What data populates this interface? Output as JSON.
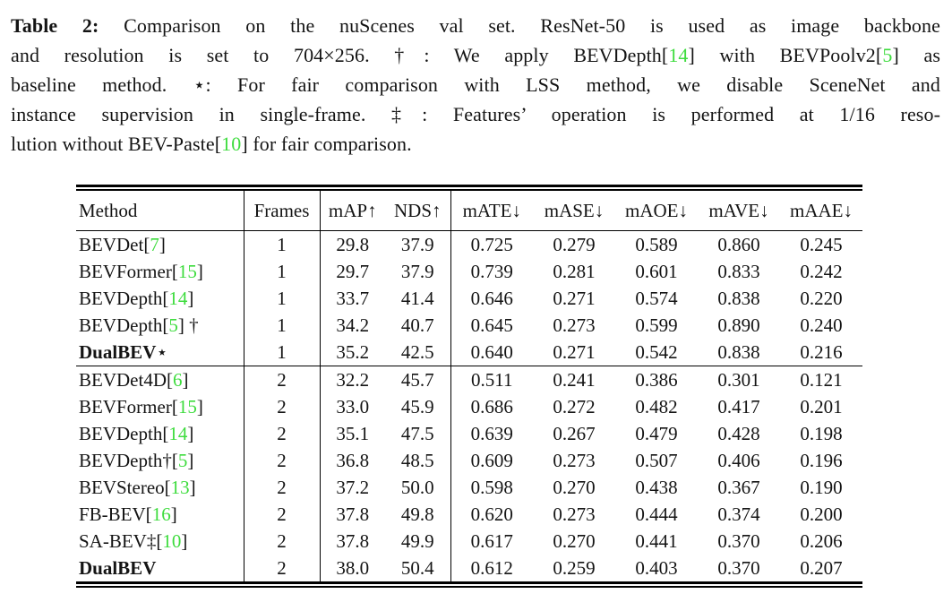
{
  "page": {
    "background": "#ffffff"
  },
  "colors": {
    "citation_green": "#3edc3e",
    "text": "#141414"
  },
  "caption": {
    "label": "Table 2:",
    "lines": [
      {
        "justify": true,
        "segments": [
          {
            "t": "Table 2:",
            "b": true
          },
          {
            "t": " Comparison on the nuScenes val set. ResNet-50 is used as image backbone"
          }
        ]
      },
      {
        "justify": true,
        "segments": [
          {
            "t": "and resolution is set to 704×256. †: We apply BEVDepth["
          },
          {
            "t": "14",
            "c": "green"
          },
          {
            "t": "] with BEVPoolv2["
          },
          {
            "t": "5",
            "c": "green"
          },
          {
            "t": "] as"
          }
        ]
      },
      {
        "justify": true,
        "segments": [
          {
            "t": "baseline method. ⋆: For fair comparison with LSS method, we disable SceneNet and"
          }
        ]
      },
      {
        "justify": true,
        "segments": [
          {
            "t": "instance supervision in single-frame. ‡: Features’ operation is performed at 1/16 reso-"
          }
        ]
      },
      {
        "justify": false,
        "segments": [
          {
            "t": "lution without BEV-Paste["
          },
          {
            "t": "10",
            "c": "green"
          },
          {
            "t": "] for fair comparison."
          }
        ]
      }
    ]
  },
  "table": {
    "columns": [
      {
        "key": "method",
        "label": "Method",
        "align": "left",
        "sep": true,
        "width": 187
      },
      {
        "key": "frames",
        "label": "Frames",
        "sep": true,
        "width": 85
      },
      {
        "key": "map",
        "label": "mAP↑",
        "width": 73
      },
      {
        "key": "nds",
        "label": "NDS↑",
        "sep": true,
        "width": 73
      },
      {
        "key": "mate",
        "label": "mATE↓",
        "width": 92
      },
      {
        "key": "mase",
        "label": "mASE↓",
        "width": 92
      },
      {
        "key": "maoe",
        "label": "mAOE↓",
        "width": 92
      },
      {
        "key": "mave",
        "label": "mAVE↓",
        "width": 92
      },
      {
        "key": "maae",
        "label": "mAAE↓",
        "width": 92
      }
    ],
    "groups": [
      {
        "rows": [
          {
            "method": [
              {
                "t": "BEVDet["
              },
              {
                "t": "7",
                "c": "green"
              },
              {
                "t": "]"
              }
            ],
            "frames": "1",
            "map": "29.8",
            "nds": "37.9",
            "mate": "0.725",
            "mase": "0.279",
            "maoe": "0.589",
            "mave": "0.860",
            "maae": "0.245"
          },
          {
            "method": [
              {
                "t": "BEVFormer["
              },
              {
                "t": "15",
                "c": "green"
              },
              {
                "t": "]"
              }
            ],
            "frames": "1",
            "map": "29.7",
            "nds": "37.9",
            "mate": "0.739",
            "mase": "0.281",
            "maoe": "0.601",
            "mave": "0.833",
            "maae": "0.242"
          },
          {
            "method": [
              {
                "t": "BEVDepth["
              },
              {
                "t": "14",
                "c": "green"
              },
              {
                "t": "]"
              }
            ],
            "frames": "1",
            "map": "33.7",
            "nds": "41.4",
            "mate": "0.646",
            "mase": "0.271",
            "maoe": "0.574",
            "mave": "0.838",
            "maae": "0.220"
          },
          {
            "method": [
              {
                "t": "BEVDepth["
              },
              {
                "t": "5",
                "c": "green"
              },
              {
                "t": "] †"
              }
            ],
            "frames": "1",
            "map": "34.2",
            "nds": "40.7",
            "mate": "0.645",
            "mase": "0.273",
            "maoe": "0.599",
            "mave": "0.890",
            "maae": "0.240"
          },
          {
            "method": [
              {
                "t": "DualBEV",
                "b": true
              },
              {
                "t": "⋆"
              }
            ],
            "bold": true,
            "frames": "1",
            "map": "35.2",
            "nds": "42.5",
            "mate": "0.640",
            "mase": "0.271",
            "maoe": "0.542",
            "mave": "0.838",
            "maae": "0.216"
          }
        ]
      },
      {
        "rows": [
          {
            "method": [
              {
                "t": "BEVDet4D["
              },
              {
                "t": "6",
                "c": "green"
              },
              {
                "t": "]"
              }
            ],
            "frames": "2",
            "map": "32.2",
            "nds": "45.7",
            "mate": "0.511",
            "mase": "0.241",
            "maoe": "0.386",
            "mave": "0.301",
            "maae": "0.121"
          },
          {
            "method": [
              {
                "t": "BEVFormer["
              },
              {
                "t": "15",
                "c": "green"
              },
              {
                "t": "]"
              }
            ],
            "frames": "2",
            "map": "33.0",
            "nds": "45.9",
            "mate": "0.686",
            "mase": "0.272",
            "maoe": "0.482",
            "mave": "0.417",
            "maae": "0.201"
          },
          {
            "method": [
              {
                "t": "BEVDepth["
              },
              {
                "t": "14",
                "c": "green"
              },
              {
                "t": "]"
              }
            ],
            "frames": "2",
            "map": "35.1",
            "nds": "47.5",
            "mate": "0.639",
            "mase": "0.267",
            "maoe": "0.479",
            "mave": "0.428",
            "maae": "0.198"
          },
          {
            "method": [
              {
                "t": "BEVDepth†["
              },
              {
                "t": "5",
                "c": "green"
              },
              {
                "t": "]"
              }
            ],
            "frames": "2",
            "map": "36.8",
            "nds": "48.5",
            "mate": "0.609",
            "mase": "0.273",
            "maoe": "0.507",
            "mave": "0.406",
            "maae": "0.196"
          },
          {
            "method": [
              {
                "t": "BEVStereo["
              },
              {
                "t": "13",
                "c": "green"
              },
              {
                "t": "]"
              }
            ],
            "frames": "2",
            "map": "37.2",
            "nds": "50.0",
            "mate": "0.598",
            "mase": "0.270",
            "maoe": "0.438",
            "mave": "0.367",
            "maae": "0.190"
          },
          {
            "method": [
              {
                "t": "FB-BEV["
              },
              {
                "t": "16",
                "c": "green"
              },
              {
                "t": "]"
              }
            ],
            "frames": "2",
            "map": "37.8",
            "nds": "49.8",
            "mate": "0.620",
            "mase": "0.273",
            "maoe": "0.444",
            "mave": "0.374",
            "maae": "0.200"
          },
          {
            "method": [
              {
                "t": "SA-BEV‡["
              },
              {
                "t": "10",
                "c": "green"
              },
              {
                "t": "]"
              }
            ],
            "frames": "2",
            "map": "37.8",
            "nds": "49.9",
            "mate": "0.617",
            "mase": "0.270",
            "maoe": "0.441",
            "mave": "0.370",
            "maae": "0.206"
          },
          {
            "method": [
              {
                "t": "DualBEV",
                "b": true
              }
            ],
            "bold": true,
            "frames": "2",
            "map": "38.0",
            "nds": "50.4",
            "mate": "0.612",
            "mase": "0.259",
            "maoe": "0.403",
            "mave": "0.370",
            "maae": "0.207"
          }
        ]
      }
    ]
  }
}
